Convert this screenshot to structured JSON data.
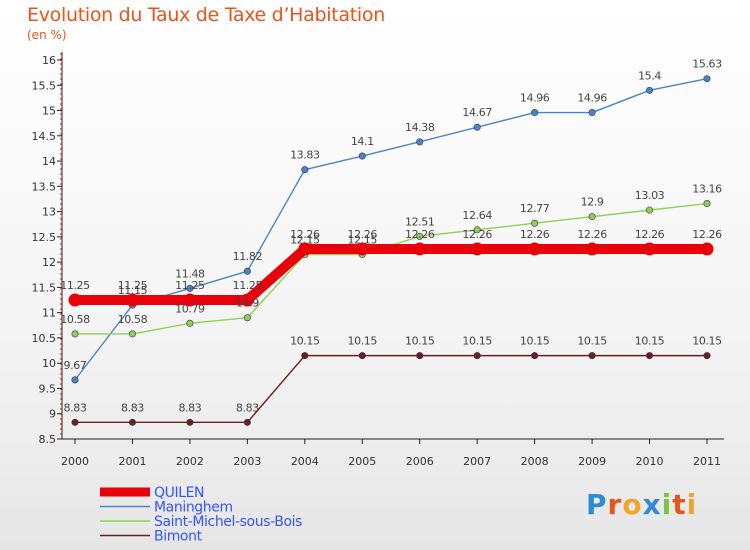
{
  "title": "Evolution du Taux de Taxe d’Habitation",
  "subtitle": "(en %)",
  "logo": {
    "text": "Proxiti",
    "letters": [
      "P",
      "r",
      "o",
      "x",
      "i",
      "t",
      "i"
    ],
    "colors": [
      "#2e8bd6",
      "#e8541c",
      "#f2a32a",
      "#2e8bd6",
      "#7cc243",
      "#e8541c",
      "#f2a32a"
    ]
  },
  "chart_data": {
    "type": "line",
    "title": "Evolution du Taux de Taxe d’Habitation",
    "ylabel": "(en %)",
    "x": [
      "2000",
      "2001",
      "2002",
      "2003",
      "2004",
      "2005",
      "2006",
      "2007",
      "2008",
      "2009",
      "2010",
      "2011"
    ],
    "ylim": [
      8.5,
      16
    ],
    "yticks": [
      "8.5",
      "9",
      "9.5",
      "10",
      "10.5",
      "11",
      "11.5",
      "12",
      "12.5",
      "13",
      "13.5",
      "14",
      "14.5",
      "15",
      "15.5",
      "16"
    ],
    "grid": false,
    "legend_position": "bottom-left",
    "series": [
      {
        "name": "QUILEN",
        "color": "#e8000b",
        "values": [
          11.25,
          11.25,
          11.25,
          11.25,
          12.26,
          12.26,
          12.26,
          12.26,
          12.26,
          12.26,
          12.26,
          12.26
        ],
        "labels": [
          "11.25",
          "11.25",
          "11.25",
          "11.25",
          "12.26",
          "12.26",
          "12.26",
          "12.26",
          "12.26",
          "12.26",
          "12.26",
          "12.26"
        ]
      },
      {
        "name": "Maninghem",
        "color": "#4a86c5",
        "values": [
          9.67,
          11.15,
          11.48,
          11.82,
          13.83,
          14.1,
          14.38,
          14.67,
          14.96,
          14.96,
          15.4,
          15.63
        ],
        "labels": [
          "9.67",
          "11.15",
          "11.48",
          "11.82",
          "13.83",
          "14.1",
          "14.38",
          "14.67",
          "14.96",
          "14.96",
          "15.4",
          "15.63"
        ]
      },
      {
        "name": "Saint-Michel-sous-Bois",
        "color": "#8fd151",
        "values": [
          10.58,
          10.58,
          10.79,
          10.9,
          12.15,
          12.15,
          12.51,
          12.64,
          12.77,
          12.9,
          13.03,
          13.16
        ],
        "labels": [
          "10.58",
          "10.58",
          "10.79",
          "10.9",
          "12.15",
          "12.15",
          "12.51",
          "12.64",
          "12.77",
          "12.9",
          "13.03",
          "13.16"
        ]
      },
      {
        "name": "Bimont",
        "color": "#6b1f1f",
        "values": [
          8.83,
          8.83,
          8.83,
          8.83,
          10.15,
          10.15,
          10.15,
          10.15,
          10.15,
          10.15,
          10.15,
          10.15
        ],
        "labels": [
          "8.83",
          "8.83",
          "8.83",
          "8.83",
          "10.15",
          "10.15",
          "10.15",
          "10.15",
          "10.15",
          "10.15",
          "10.15",
          "10.15"
        ]
      }
    ]
  }
}
